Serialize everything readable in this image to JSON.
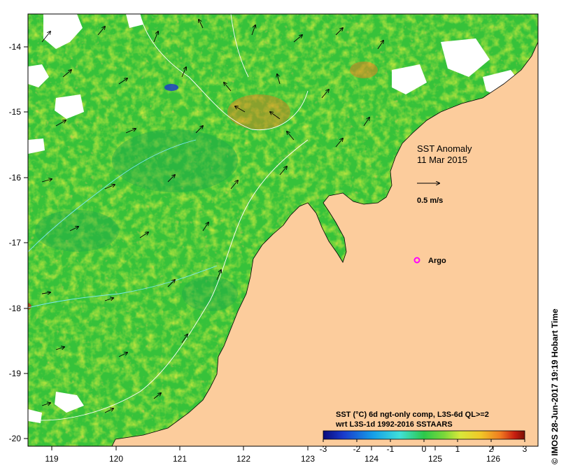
{
  "map": {
    "title_line1": "SST Anomaly",
    "title_line2": "11 Mar 2015",
    "arrow_scale_label": "0.5 m/s",
    "argo_label": "Argo",
    "caption_line1": "SST (°C) 6d ngt-only comp, L3S-6d QL>=2",
    "caption_line2": "wrt L3S-1d 1992-2016 SSTAARS",
    "credit": "© IMOS 28-Jun-2017 19:19 Hobart Time",
    "colors": {
      "land": "#fccc9c",
      "sea": "#36c23a",
      "argo_marker": "#ff00ff"
    }
  },
  "axes": {
    "x_ticks": [
      "119",
      "120",
      "121",
      "122",
      "123",
      "124",
      "125",
      "126"
    ],
    "y_ticks": [
      "-14",
      "-15",
      "-16",
      "-17",
      "-18",
      "-19",
      "-20"
    ]
  },
  "colorbar": {
    "ticks": [
      "-3",
      "-2",
      "-1",
      "0",
      "1",
      "2",
      "3"
    ],
    "colors": [
      "#0a0a7a",
      "#1a3acc",
      "#16a0e8",
      "#40e0d8",
      "#2cc84a",
      "#7ad83a",
      "#d8e83a",
      "#f0c828",
      "#f07a20",
      "#c81e10",
      "#7a1006"
    ]
  }
}
